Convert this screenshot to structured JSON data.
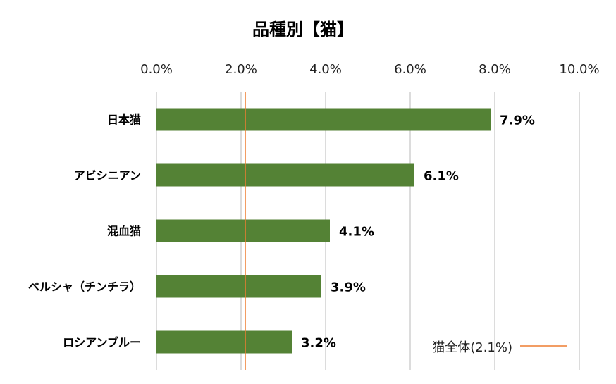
{
  "chart_data": {
    "type": "bar",
    "orientation": "horizontal",
    "title": "品種別【猫】",
    "categories": [
      "日本猫",
      "アビシニアン",
      "混血猫",
      "ペルシャ（チンチラ）",
      "ロシアンブルー"
    ],
    "values": [
      7.9,
      6.1,
      4.1,
      3.9,
      3.2
    ],
    "value_labels": [
      "7.9%",
      "6.1%",
      "4.1%",
      "3.9%",
      "3.2%"
    ],
    "x_ticks": [
      "0.0%",
      "2.0%",
      "4.0%",
      "6.0%",
      "8.0%",
      "10.0%"
    ],
    "xlim": [
      0,
      10
    ],
    "x_axis_position": "top",
    "grid": true,
    "bar_color": "#548235",
    "reference_line": {
      "name": "猫全体(2.1%)",
      "value": 2.1,
      "color": "#ED7D31"
    },
    "legend": {
      "position": "bottom-right",
      "entries": [
        "猫全体(2.1%)"
      ]
    }
  }
}
